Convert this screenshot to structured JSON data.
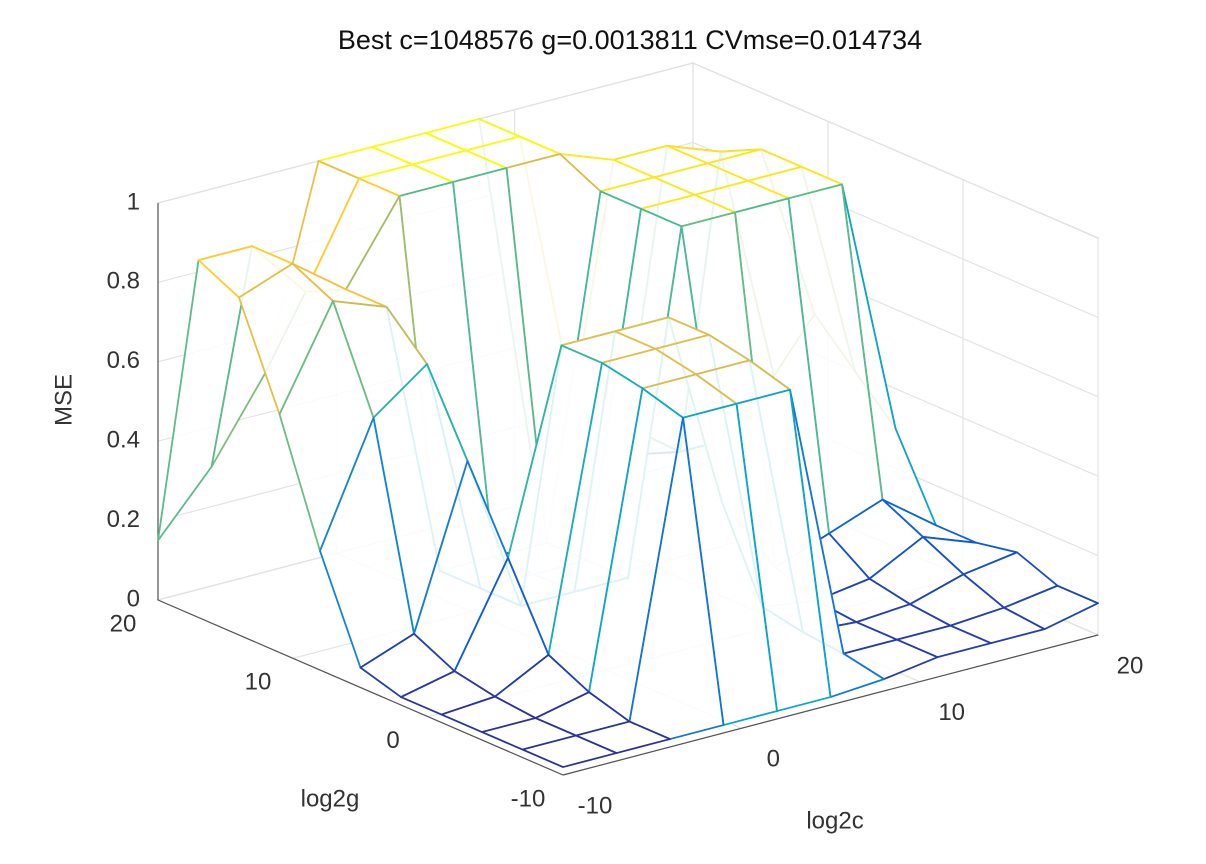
{
  "chart_data": {
    "type": "surface",
    "title": "Best c=1048576 g=0.0013811 CVmse=0.014734",
    "x_label": "log2c",
    "y_label": "log2g",
    "z_label": "MSE",
    "x": [
      -10,
      -7,
      -4,
      -1,
      2,
      5,
      8,
      11,
      14,
      17,
      20
    ],
    "y": [
      -10,
      -7,
      -4,
      -1,
      2,
      5,
      8,
      11,
      14,
      17,
      20
    ],
    "values": [
      [
        0.02,
        0.02,
        0.02,
        0.02,
        0.02,
        0.02,
        0.03,
        0.05,
        0.05,
        0.05,
        0.08
      ],
      [
        0.02,
        0.02,
        0.02,
        0.75,
        0.75,
        0.75,
        0.05,
        0.05,
        0.05,
        0.06,
        0.08
      ],
      [
        0.02,
        0.02,
        0.05,
        0.78,
        0.78,
        0.78,
        0.06,
        0.05,
        0.06,
        0.1,
        0.12
      ],
      [
        0.02,
        0.03,
        0.1,
        0.8,
        0.8,
        0.8,
        0.08,
        0.06,
        0.08,
        0.15,
        0.1
      ],
      [
        0.02,
        0.05,
        0.3,
        0.8,
        0.8,
        0.8,
        0.3,
        0.1,
        0.15,
        0.2,
        0.1
      ],
      [
        0.05,
        0.1,
        0.5,
        0.1,
        0.1,
        0.1,
        0.95,
        0.95,
        0.95,
        0.95,
        0.3
      ],
      [
        0.3,
        0.6,
        0.7,
        0.1,
        0.1,
        0.1,
        0.95,
        0.95,
        0.95,
        0.95,
        0.4
      ],
      [
        0.6,
        0.85,
        0.8,
        0.1,
        0.1,
        0.1,
        0.95,
        0.95,
        0.95,
        0.95,
        0.5
      ],
      [
        0.85,
        0.9,
        0.8,
        1,
        1,
        1,
        1,
        0.95,
        0.95,
        0.9,
        0.3
      ],
      [
        0.9,
        0.9,
        0.75,
        1,
        1,
        1,
        1,
        0.3,
        0.2,
        0.1,
        0.1
      ],
      [
        0.15,
        0.3,
        0.5,
        1,
        1,
        1,
        1,
        0.1,
        0.05,
        0.05,
        0.05
      ]
    ],
    "xlim": [
      -10,
      20
    ],
    "ylim": [
      -10,
      20
    ],
    "zlim": [
      0,
      1
    ],
    "xticks": [
      -10,
      0,
      10,
      20
    ],
    "yticks": [
      -10,
      0,
      10,
      20
    ],
    "zticks": [
      0,
      0.2,
      0.4,
      0.6,
      0.8,
      1
    ],
    "grid": true,
    "colormap": [
      "#352a87",
      "#0f5cdd",
      "#1481d6",
      "#06a4ca",
      "#2eb7a4",
      "#87bf77",
      "#d1bb59",
      "#fec832",
      "#f9fb0e"
    ]
  }
}
